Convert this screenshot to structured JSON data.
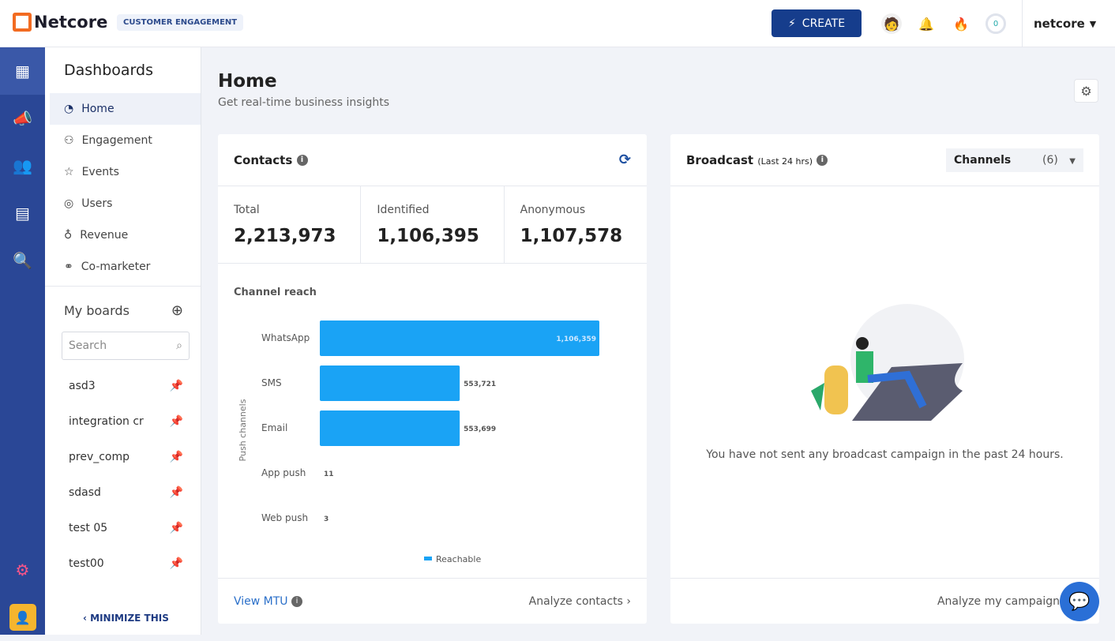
{
  "header": {
    "brand": "Netcore",
    "product_tag": "CUSTOMER ENGAGEMENT",
    "create_label": "CREATE",
    "points": "0",
    "user": "netcore"
  },
  "sidebar": {
    "title": "Dashboards",
    "items": [
      {
        "label": "Home",
        "icon": "pie-chart-icon"
      },
      {
        "label": "Engagement",
        "icon": "engagement-icon"
      },
      {
        "label": "Events",
        "icon": "star-icon"
      },
      {
        "label": "Users",
        "icon": "users-icon"
      },
      {
        "label": "Revenue",
        "icon": "revenue-icon"
      },
      {
        "label": "Co-marketer",
        "icon": "handshake-icon"
      }
    ],
    "my_boards": "My boards",
    "search_placeholder": "Search",
    "boards": [
      "asd3",
      "integration cr",
      "prev_comp",
      "sdasd",
      "test 05",
      "test00"
    ],
    "minimize": "MINIMIZE THIS"
  },
  "page": {
    "title": "Home",
    "subtitle": "Get real-time business insights"
  },
  "contacts": {
    "title": "Contacts",
    "stats": [
      {
        "label": "Total",
        "value": "2,213,973"
      },
      {
        "label": "Identified",
        "value": "1,106,395"
      },
      {
        "label": "Anonymous",
        "value": "1,107,578"
      }
    ],
    "chart_title": "Channel reach",
    "view_mtu": "View MTU",
    "analyze": "Analyze contacts"
  },
  "chart_data": {
    "type": "bar",
    "orientation": "horizontal",
    "title": "Channel reach",
    "ylabel": "Push channels",
    "categories": [
      "WhatsApp",
      "SMS",
      "Email",
      "App push",
      "Web push"
    ],
    "series": [
      {
        "name": "Reachable",
        "values": [
          1106359,
          553721,
          553699,
          11,
          3
        ],
        "labels": [
          "1,106,359",
          "553,721",
          "553,699",
          "11",
          "3"
        ]
      }
    ],
    "legend": "bottom",
    "color": "#1aa3f5"
  },
  "broadcast": {
    "title": "Broadcast",
    "period": "(Last 24 hrs)",
    "channels_label": "Channels",
    "channels_count": "(6)",
    "empty_message": "You have not sent any broadcast campaign in the past 24 hours.",
    "analyze": "Analyze my campaign"
  }
}
